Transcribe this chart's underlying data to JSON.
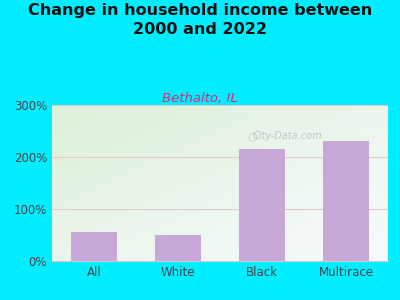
{
  "title": "Change in household income between\n2000 and 2022",
  "subtitle": "Bethalto, IL",
  "categories": [
    "All",
    "White",
    "Black",
    "Multirace"
  ],
  "values": [
    55,
    50,
    215,
    230
  ],
  "bar_color": "#c8a8d8",
  "title_fontsize": 11.5,
  "subtitle_fontsize": 9.5,
  "subtitle_color": "#cc3377",
  "title_color": "#111111",
  "outer_bg": "#00eeff",
  "plot_bg_topleft": "#ddf0d8",
  "plot_bg_bottomright": "#f8fbff",
  "yticks": [
    0,
    100,
    200,
    300
  ],
  "ylim": [
    0,
    300
  ],
  "grid_color": "#e8c8c8",
  "watermark": "City-Data.com",
  "watermark_color": "#b0b8c0"
}
